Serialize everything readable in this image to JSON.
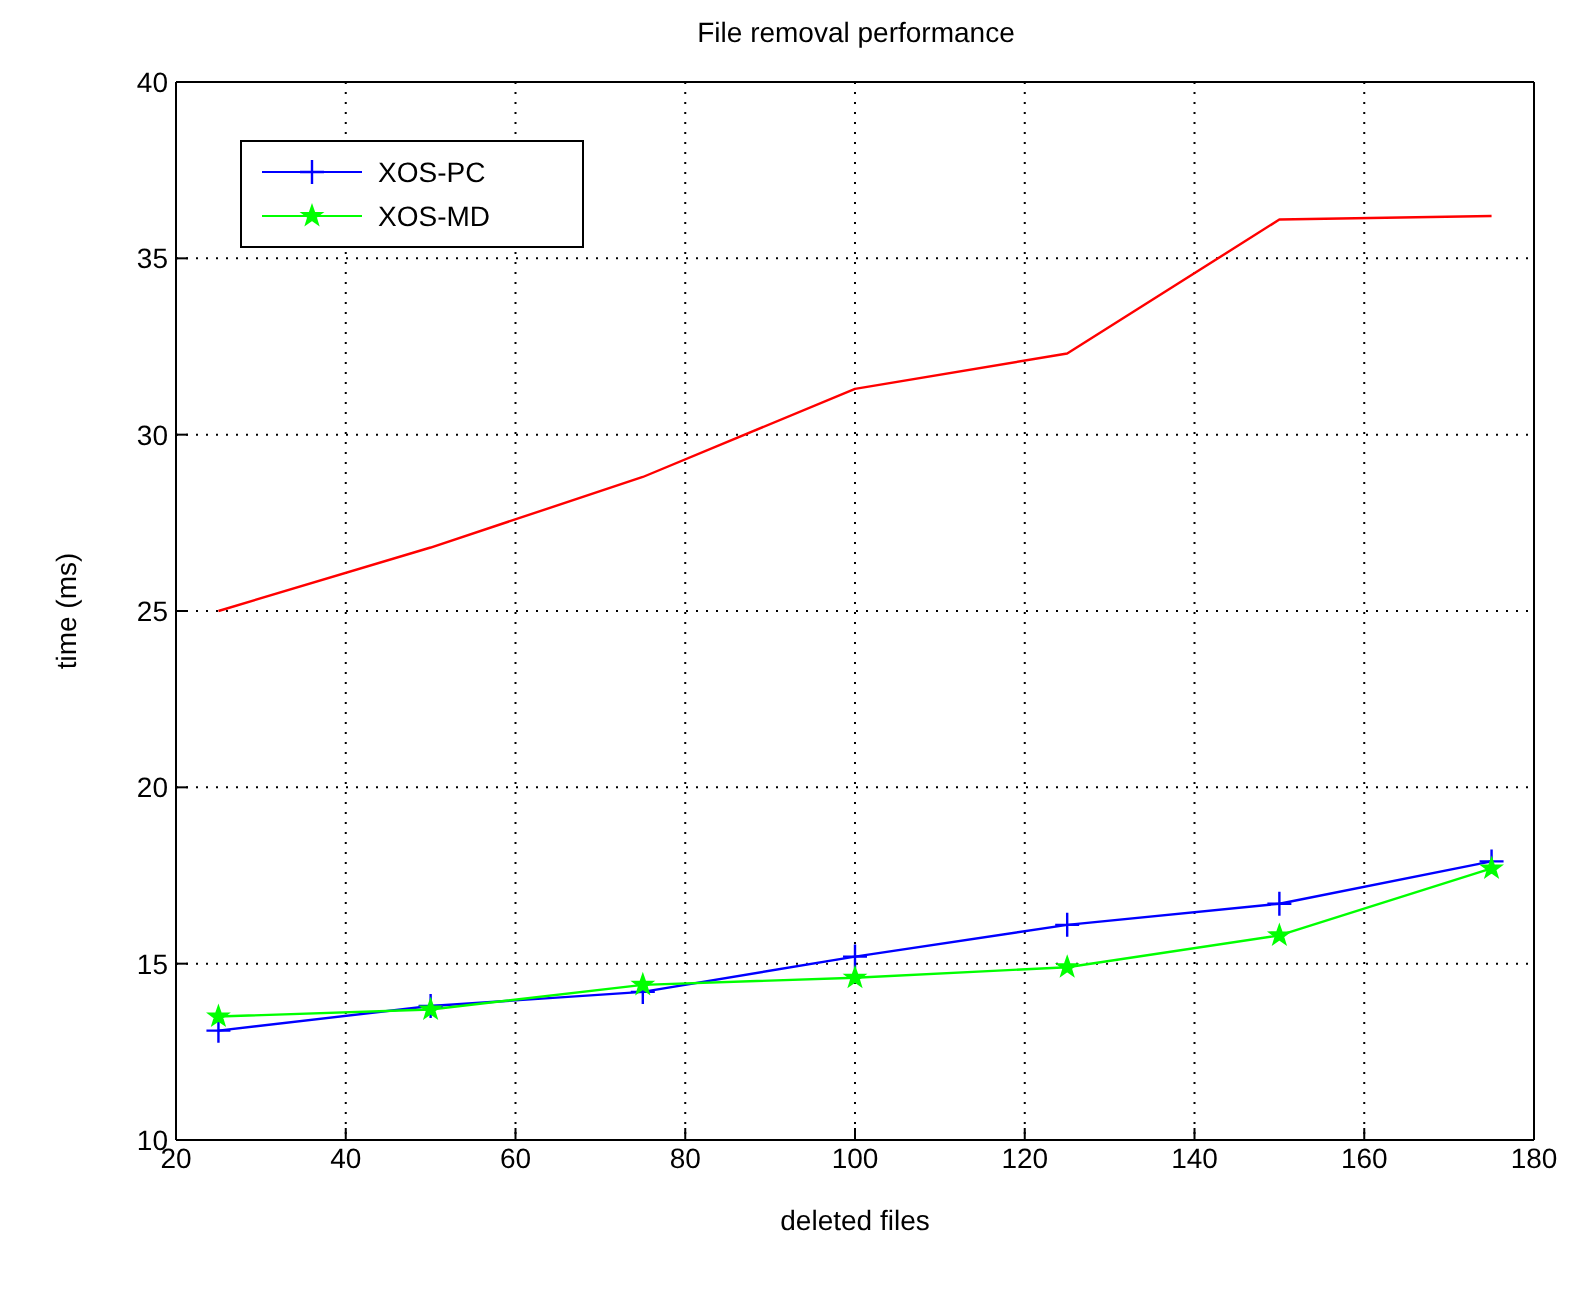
{
  "chart_data": {
    "type": "line",
    "title": "File removal performance",
    "xlabel": "deleted files",
    "ylabel": "time (ms)",
    "x": [
      25,
      50,
      75,
      100,
      125,
      150,
      175
    ],
    "series": [
      {
        "color": "#ff0000",
        "marker": "none",
        "values": [
          25.0,
          26.8,
          28.8,
          31.3,
          32.3,
          36.1,
          36.2
        ]
      },
      {
        "name": "XOS-PC",
        "color": "#0000ff",
        "marker": "cross",
        "values": [
          13.1,
          13.8,
          14.2,
          15.2,
          16.1,
          16.7,
          17.9
        ]
      },
      {
        "name": "XOS-MD",
        "color": "#00ff00",
        "marker": "star",
        "values": [
          13.5,
          13.7,
          14.4,
          14.6,
          14.9,
          15.8,
          17.7
        ]
      }
    ],
    "xlim": [
      20,
      180
    ],
    "xticks": [
      20,
      40,
      60,
      80,
      100,
      120,
      140,
      160,
      180
    ],
    "ylim": [
      10,
      40
    ],
    "yticks": [
      10,
      15,
      20,
      25,
      30,
      35,
      40
    ],
    "grid": true,
    "legend": "top left",
    "line_style": "solid"
  }
}
